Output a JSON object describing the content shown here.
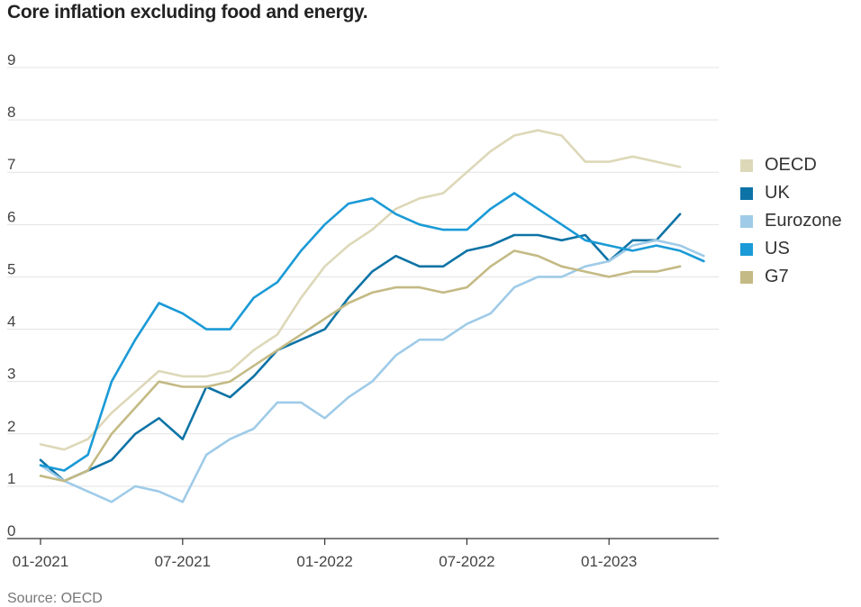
{
  "chart_data": {
    "type": "line",
    "title": "Core inflation excluding food and energy.",
    "source": "Source: OECD",
    "ylim": [
      0,
      9
    ],
    "yticks": [
      "0",
      "1",
      "2",
      "3",
      "4",
      "5",
      "6",
      "7",
      "8",
      "9"
    ],
    "xticks": [
      "01-2021",
      "07-2021",
      "01-2022",
      "07-2022",
      "01-2023"
    ],
    "x": [
      "2021-01",
      "2021-02",
      "2021-03",
      "2021-04",
      "2021-05",
      "2021-06",
      "2021-07",
      "2021-08",
      "2021-09",
      "2021-10",
      "2021-11",
      "2021-12",
      "2022-01",
      "2022-02",
      "2022-03",
      "2022-04",
      "2022-05",
      "2022-06",
      "2022-07",
      "2022-08",
      "2022-09",
      "2022-10",
      "2022-11",
      "2022-12",
      "2023-01",
      "2023-02",
      "2023-03",
      "2023-04",
      "2023-05"
    ],
    "series": [
      {
        "name": "OECD",
        "color": "#ddd8b8",
        "values": [
          1.8,
          1.7,
          1.9,
          2.4,
          2.8,
          3.2,
          3.1,
          3.1,
          3.2,
          3.6,
          3.9,
          4.6,
          5.2,
          5.6,
          5.9,
          6.3,
          6.5,
          6.6,
          7.0,
          7.4,
          7.7,
          7.8,
          7.7,
          7.2,
          7.2,
          7.3,
          7.2,
          7.1,
          null
        ]
      },
      {
        "name": "UK",
        "color": "#0d73a6",
        "values": [
          1.5,
          1.1,
          1.3,
          1.5,
          2.0,
          2.3,
          1.9,
          2.9,
          2.7,
          3.1,
          3.6,
          3.8,
          4.0,
          4.6,
          5.1,
          5.4,
          5.2,
          5.2,
          5.5,
          5.6,
          5.8,
          5.8,
          5.7,
          5.8,
          5.3,
          5.7,
          5.7,
          6.2,
          null
        ]
      },
      {
        "name": "Eurozone",
        "color": "#9fcbe8",
        "values": [
          1.4,
          1.1,
          0.9,
          0.7,
          1.0,
          0.9,
          0.7,
          1.6,
          1.9,
          2.1,
          2.6,
          2.6,
          2.3,
          2.7,
          3.0,
          3.5,
          3.8,
          3.8,
          4.1,
          4.3,
          4.8,
          5.0,
          5.0,
          5.2,
          5.3,
          5.6,
          5.7,
          5.6,
          5.4
        ]
      },
      {
        "name": "US",
        "color": "#1a9ad6",
        "values": [
          1.4,
          1.3,
          1.6,
          3.0,
          3.8,
          4.5,
          4.3,
          4.0,
          4.0,
          4.6,
          4.9,
          5.5,
          6.0,
          6.4,
          6.5,
          6.2,
          6.0,
          5.9,
          5.9,
          6.3,
          6.6,
          6.3,
          6.0,
          5.7,
          5.6,
          5.5,
          5.6,
          5.5,
          5.3
        ]
      },
      {
        "name": "G7",
        "color": "#c4ba85",
        "values": [
          1.2,
          1.1,
          1.3,
          2.0,
          2.5,
          3.0,
          2.9,
          2.9,
          3.0,
          3.3,
          3.6,
          3.9,
          4.2,
          4.5,
          4.7,
          4.8,
          4.8,
          4.7,
          4.8,
          5.2,
          5.5,
          5.4,
          5.2,
          5.1,
          5.0,
          5.1,
          5.1,
          5.2,
          null
        ]
      }
    ]
  }
}
